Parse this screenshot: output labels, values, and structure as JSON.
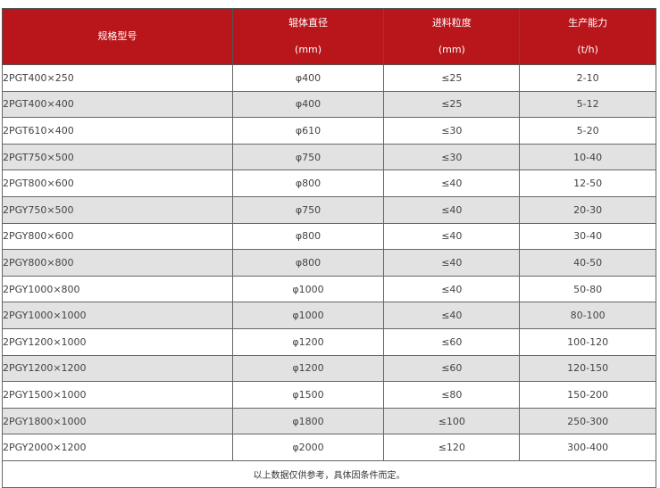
{
  "header": {
    "model": "规格型号",
    "roll_dia": [
      "辊体直径",
      "(mm)"
    ],
    "feed": [
      "进料粒度",
      "(mm)"
    ],
    "capacity": [
      "生产能力",
      "(t/h)"
    ]
  },
  "header_color": "#b8161b",
  "rows": [
    [
      "2PGT400×250",
      "φ400",
      "≤25",
      "2-10"
    ],
    [
      "2PGT400×400",
      "φ400",
      "≤25",
      "5-12"
    ],
    [
      "2PGT610×400",
      "φ610",
      "≤30",
      "5-20"
    ],
    [
      "2PGT750×500",
      "φ750",
      "≤30",
      "10-40"
    ],
    [
      "2PGT800×600",
      "φ800",
      "≤40",
      "12-50"
    ],
    [
      "2PGY750×500",
      "φ750",
      "≤40",
      "20-30"
    ],
    [
      "2PGY800×600",
      "φ800",
      "≤40",
      "30-40"
    ],
    [
      "2PGY800×800",
      "φ800",
      "≤40",
      "40-50"
    ],
    [
      "2PGY1000×800",
      "φ1000",
      "≤40",
      "50-80"
    ],
    [
      "2PGY1000×1000",
      "φ1000",
      "≤40",
      "80-100"
    ],
    [
      "2PGY1200×1000",
      "φ1200",
      "≤60",
      "100-120"
    ],
    [
      "2PGY1200×1200",
      "φ1200",
      "≤60",
      "120-150"
    ],
    [
      "2PGY1500×1000",
      "φ1500",
      "≤80",
      "150-200"
    ],
    [
      "2PGY1800×1000",
      "φ1800",
      "≤100",
      "250-300"
    ],
    [
      "2PGY2000×1200",
      "φ2000",
      "≤120",
      "300-400"
    ]
  ],
  "footnote": "以上数据仅供参考，具体因条件而定。"
}
